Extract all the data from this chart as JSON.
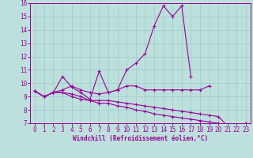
{
  "xlabel": "Windchill (Refroidissement éolien,°C)",
  "x_values": [
    0,
    1,
    2,
    3,
    4,
    5,
    6,
    7,
    8,
    9,
    10,
    11,
    12,
    13,
    14,
    15,
    16,
    17,
    18,
    19,
    20,
    21,
    22,
    23
  ],
  "line1": [
    9.4,
    9.0,
    9.3,
    10.5,
    9.7,
    9.3,
    8.8,
    10.9,
    9.3,
    9.5,
    11.0,
    11.5,
    12.2,
    14.3,
    15.8,
    15.0,
    15.8,
    10.5,
    null,
    null,
    null,
    null,
    null,
    null
  ],
  "line2": [
    9.4,
    9.0,
    9.3,
    9.5,
    9.8,
    9.5,
    9.3,
    9.2,
    9.3,
    9.5,
    9.8,
    9.8,
    9.5,
    9.5,
    9.5,
    9.5,
    9.5,
    9.5,
    9.5,
    9.8,
    null,
    null,
    null,
    null
  ],
  "line3": [
    9.4,
    9.0,
    9.3,
    9.3,
    9.0,
    8.8,
    8.7,
    8.7,
    8.7,
    8.6,
    8.5,
    8.4,
    8.3,
    8.2,
    8.1,
    8.0,
    7.9,
    7.8,
    7.7,
    7.6,
    7.5,
    6.8,
    6.7,
    7.0
  ],
  "line4": [
    9.4,
    9.0,
    9.3,
    9.3,
    9.2,
    9.0,
    8.7,
    8.5,
    8.5,
    8.3,
    8.2,
    8.0,
    7.9,
    7.7,
    7.6,
    7.5,
    7.4,
    7.3,
    7.2,
    7.1,
    7.0,
    6.8,
    6.7,
    7.0
  ],
  "line_color": "#990099",
  "bg_color": "#bde0dd",
  "grid_color": "#99cccc",
  "ylim": [
    7,
    16
  ],
  "xlim": [
    -0.5,
    23.5
  ],
  "yticks": [
    7,
    8,
    9,
    10,
    11,
    12,
    13,
    14,
    15,
    16
  ],
  "xticks": [
    0,
    1,
    2,
    3,
    4,
    5,
    6,
    7,
    8,
    9,
    10,
    11,
    12,
    13,
    14,
    15,
    16,
    17,
    18,
    19,
    20,
    21,
    22,
    23
  ]
}
